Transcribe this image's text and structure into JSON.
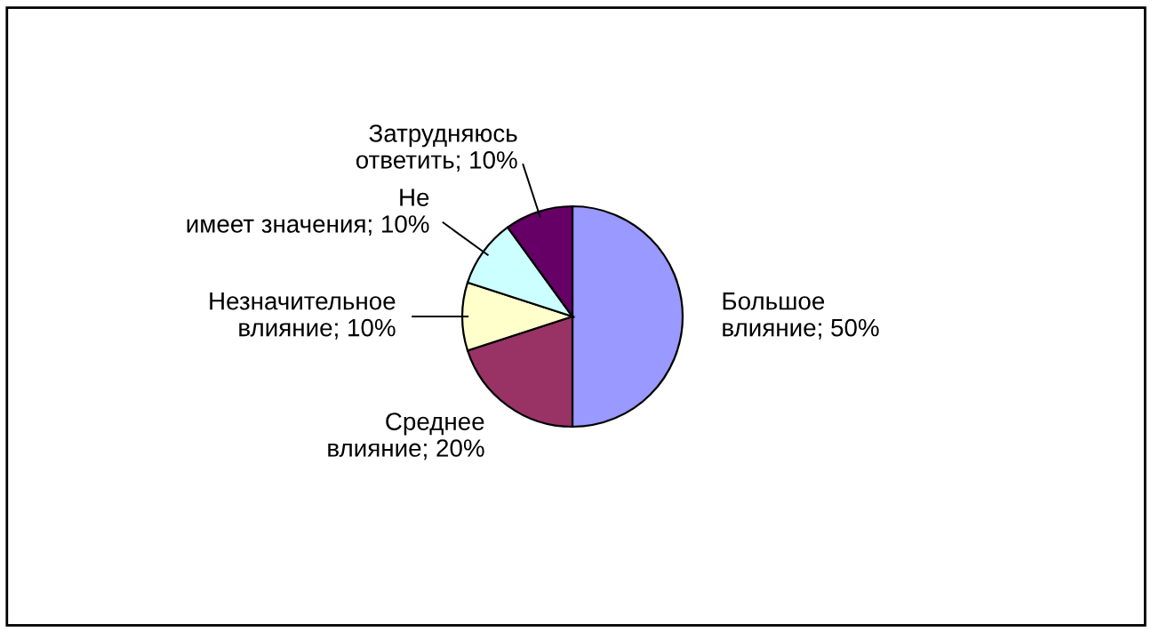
{
  "chart_data": {
    "type": "pie",
    "categories": [
      "Большое влияние",
      "Среднее влияние",
      "Незначительное влияние",
      "Не имеет значения",
      "Затрудняюсь ответить"
    ],
    "values": [
      50,
      20,
      10,
      10,
      10
    ],
    "value_labels": [
      "50%",
      "20%",
      "10%",
      "10%",
      "10%"
    ],
    "colors": [
      "#9999ff",
      "#993366",
      "#ffffcc",
      "#ccffff",
      "#660066"
    ],
    "legend": false
  }
}
